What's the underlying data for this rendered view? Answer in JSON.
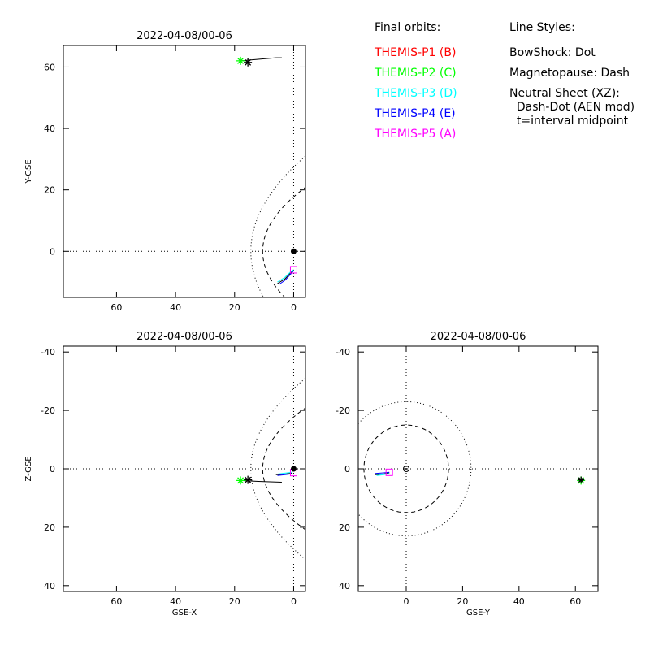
{
  "legend": {
    "orbits_title": "Final orbits:",
    "probes": [
      {
        "label": "THEMIS-P1 (B)",
        "color": "#ff0000"
      },
      {
        "label": "THEMIS-P2 (C)",
        "color": "#00ff00"
      },
      {
        "label": "THEMIS-P3 (D)",
        "color": "#00ffff"
      },
      {
        "label": "THEMIS-P4 (E)",
        "color": "#0000ff"
      },
      {
        "label": "THEMIS-P5 (A)",
        "color": "#ff00ff"
      }
    ],
    "styles_title": "Line Styles:",
    "styles": [
      "BowShock: Dot",
      "Magnetopause: Dash",
      "Neutral Sheet (XZ):",
      "  Dash-Dot (AEN mod)",
      "  t=interval midpoint"
    ]
  },
  "chart_data": [
    {
      "type": "line",
      "title": "2022-04-08/00-06",
      "xlabel": "",
      "ylabel": "Y-GSE",
      "xlim": [
        78,
        -4
      ],
      "ylim": [
        67,
        -15
      ],
      "xticks": [
        60,
        40,
        20,
        0
      ],
      "yticks": [
        0,
        20,
        40,
        60
      ],
      "series": [
        {
          "name": "BowShock",
          "style": "dot",
          "x": [
            14,
            10.5,
            5.6,
            -1,
            -4
          ],
          "y": [
            -15,
            -8,
            0,
            8,
            15
          ]
        },
        {
          "name": "BowShock",
          "style": "dot",
          "x": [
            14,
            10.5,
            5.6,
            -1,
            -4
          ],
          "y": [
            -15,
            -8,
            0,
            8,
            15
          ]
        }
      ]
    },
    {
      "type": "line",
      "title": "2022-04-08/00-06",
      "xlabel": "GSE-X",
      "ylabel": "Z-GSE",
      "xlim": [
        78,
        -4
      ],
      "ylim": [
        -42,
        42
      ],
      "xticks": [
        60,
        40,
        20,
        0
      ],
      "yticks": [
        40,
        20,
        0,
        -20,
        -40
      ]
    },
    {
      "type": "line",
      "title": "2022-04-08/00-06",
      "xlabel": "GSE-Y",
      "ylabel": "",
      "xlim": [
        -17,
        68
      ],
      "ylim": [
        -42,
        42
      ],
      "xticks": [
        0,
        20,
        40,
        60
      ],
      "yticks": [
        40,
        20,
        0,
        -20,
        -40
      ]
    }
  ],
  "colors": {
    "earth": "#000000",
    "trajectory": "#000000"
  }
}
